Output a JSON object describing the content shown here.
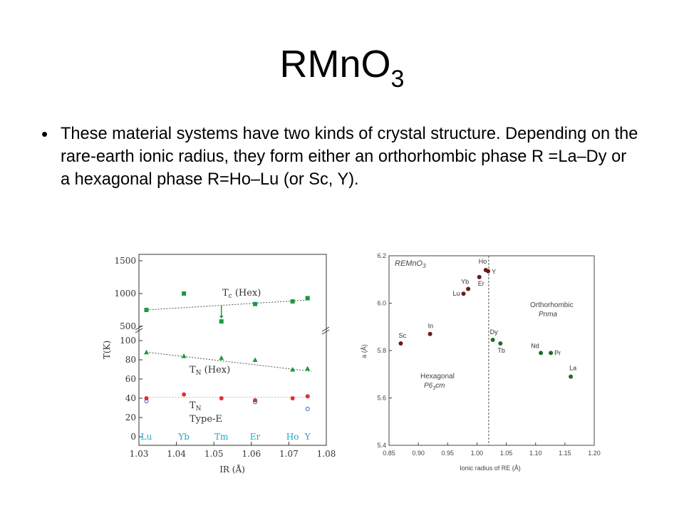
{
  "slide": {
    "title_main": "RMnO",
    "title_sub": "3",
    "bullet": "These material systems have two kinds of crystal structure. Depending on the rare-earth ionic radius, they form either an orthorhombic phase R =La–Dy or a hexagonal phase R=Ho–Lu (or Sc, Y)."
  },
  "colors": {
    "green": "#1a9a3c",
    "red": "#e53030",
    "blue": "#3060c0",
    "cyan": "#1aa9c8",
    "maroon": "#6b1a1a",
    "darkgreen": "#1e6b2e"
  },
  "chart_data": [
    {
      "type": "scatter",
      "xlabel": "IR (Å)",
      "ylabel": "T(K)",
      "x_ticks": [
        "1.03",
        "1.04",
        "1.05",
        "1.06",
        "1.07",
        "1.08"
      ],
      "xlim": [
        1.03,
        1.08
      ],
      "y_ticks_upper": [
        "500",
        "1000",
        "1500"
      ],
      "y_ticks_lower": [
        "0",
        "20",
        "40",
        "60",
        "80",
        "100"
      ],
      "element_labels": [
        {
          "name": "Lu",
          "x": 1.032
        },
        {
          "name": "Yb",
          "x": 1.042
        },
        {
          "name": "Tm",
          "x": 1.052
        },
        {
          "name": "Er",
          "x": 1.061
        },
        {
          "name": "Ho",
          "x": 1.071
        },
        {
          "name": "Y",
          "x": 1.075
        }
      ],
      "annotations": {
        "tc": "T",
        "tc_sub": "c",
        "tc_rest": " (Hex)",
        "tn_hex": "T",
        "tn_hex_sub": "N",
        "tn_hex_rest": " (Hex)",
        "tn": "T",
        "tn_sub": "N",
        "type_e": "Type-E"
      },
      "series": [
        {
          "name": "Tc",
          "x": [
            1.032,
            1.042,
            1.052,
            1.061,
            1.071,
            1.075
          ],
          "y": [
            750,
            1000,
            575,
            840,
            880,
            930
          ]
        },
        {
          "name": "TN",
          "x": [
            1.032,
            1.042,
            1.052,
            1.061,
            1.071,
            1.075
          ],
          "y": [
            88,
            84,
            82,
            80,
            70,
            71
          ]
        },
        {
          "name": "Type-E",
          "x": [
            1.032,
            1.042,
            1.052,
            1.061,
            1.071,
            1.075
          ],
          "y": [
            40,
            44,
            40,
            38,
            40,
            42
          ]
        }
      ]
    },
    {
      "type": "scatter",
      "title": "REMnO",
      "title_sub": "3",
      "xlabel": "Ionic radius of RE (Å)",
      "ylabel": "a (Å)",
      "xlim": [
        0.85,
        1.2
      ],
      "ylim": [
        5.4,
        6.2
      ],
      "x_ticks": [
        "0.85",
        "0.90",
        "0.95",
        "1.00",
        "1.05",
        "1.10",
        "1.15",
        "1.20"
      ],
      "y_ticks": [
        "5.4",
        "5.6",
        "5.8",
        "6.0",
        "6.2"
      ],
      "divider_x": 1.02,
      "annotations": {
        "orthorhombic": "Orthorhombic",
        "pnma": "Pnma",
        "hexagonal": "Hexagonal",
        "p63cm_a": "P6",
        "p63cm_sub": "3",
        "p63cm_b": "cm"
      },
      "points": [
        {
          "name": "Sc",
          "x": 0.87,
          "y": 5.83,
          "group": "hex"
        },
        {
          "name": "In",
          "x": 0.92,
          "y": 5.87,
          "group": "hex"
        },
        {
          "name": "Lu",
          "x": 0.977,
          "y": 6.04,
          "group": "hex"
        },
        {
          "name": "Yb",
          "x": 0.985,
          "y": 6.06,
          "group": "hex"
        },
        {
          "name": "Er",
          "x": 1.004,
          "y": 6.11,
          "group": "hex"
        },
        {
          "name": "Ho",
          "x": 1.015,
          "y": 6.14,
          "group": "hex"
        },
        {
          "name": "Y",
          "x": 1.019,
          "y": 6.135,
          "group": "hex"
        },
        {
          "name": "Dy",
          "x": 1.027,
          "y": 5.845,
          "group": "ortho"
        },
        {
          "name": "Tb",
          "x": 1.04,
          "y": 5.83,
          "group": "ortho"
        },
        {
          "name": "Nd",
          "x": 1.109,
          "y": 5.79,
          "group": "ortho"
        },
        {
          "name": "Pr",
          "x": 1.126,
          "y": 5.79,
          "group": "ortho"
        },
        {
          "name": "La",
          "x": 1.16,
          "y": 5.69,
          "group": "ortho"
        }
      ]
    }
  ]
}
